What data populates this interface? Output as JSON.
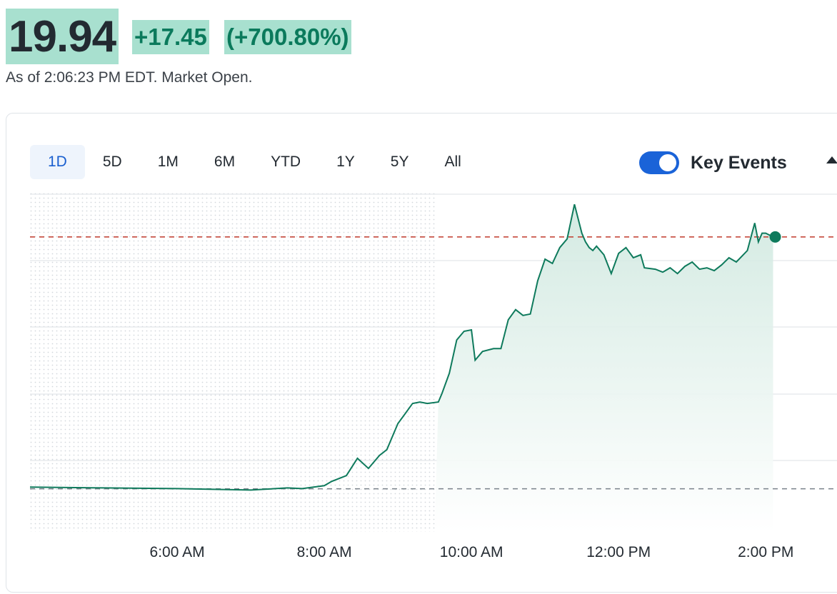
{
  "quote": {
    "price": "19.94",
    "change": "+17.45",
    "change_pct": "(+700.80%)",
    "as_of": "As of 2:06:23 PM EDT. Market Open."
  },
  "range_tabs": [
    {
      "label": "1D",
      "active": true
    },
    {
      "label": "5D"
    },
    {
      "label": "1M"
    },
    {
      "label": "6M"
    },
    {
      "label": "YTD"
    },
    {
      "label": "1Y"
    },
    {
      "label": "5Y"
    },
    {
      "label": "All"
    }
  ],
  "key_events": {
    "label": "Key Events",
    "enabled": true
  },
  "colors": {
    "line": "#0e7a5c",
    "fill": "#dcefe8",
    "price_highlight": "#a8e0cf",
    "reference_red": "#c0392b",
    "reference_gray": "#7a828b",
    "accent": "#1a63d8"
  },
  "chart_data": {
    "type": "area",
    "title": "",
    "xlabel": "",
    "ylabel": "",
    "x_tick_labels": [
      "6:00 AM",
      "8:00 AM",
      "10:00 AM",
      "12:00 PM",
      "2:00 PM"
    ],
    "x_tick_hours": [
      6,
      8,
      10,
      12,
      14
    ],
    "x_range_hours": [
      4.0,
      14.25
    ],
    "regular_session_start_hour": 9.5,
    "previous_close": 2.49,
    "reference_price": 19.94,
    "current_price": 19.94,
    "ylim": [
      -0.5,
      23.0
    ],
    "grid": true,
    "series": [
      {
        "x": [
          4.0,
          5.0,
          6.0,
          7.0,
          7.5,
          7.7,
          8.0,
          8.1,
          8.3,
          8.45,
          8.6,
          8.75,
          8.85,
          9.0,
          9.1,
          9.2,
          9.3,
          9.4,
          9.55,
          9.6,
          9.7,
          9.8,
          9.9,
          10.0,
          10.05,
          10.15,
          10.3,
          10.4,
          10.5,
          10.6,
          10.7,
          10.8,
          10.9,
          11.0,
          11.1,
          11.2,
          11.3,
          11.4,
          11.5,
          11.55,
          11.6,
          11.65,
          11.7,
          11.8,
          11.9,
          12.0,
          12.1,
          12.2,
          12.3,
          12.35,
          12.5,
          12.6,
          12.7,
          12.8,
          12.9,
          13.0,
          13.1,
          13.2,
          13.3,
          13.4,
          13.5,
          13.6,
          13.75,
          13.85,
          13.9,
          13.95,
          14.0,
          14.1
        ],
        "y": [
          2.6,
          2.55,
          2.5,
          2.4,
          2.55,
          2.5,
          2.7,
          3.0,
          3.4,
          4.6,
          3.9,
          4.8,
          5.2,
          7.0,
          7.7,
          8.4,
          8.5,
          8.4,
          8.5,
          9.1,
          10.5,
          12.8,
          13.4,
          13.5,
          11.4,
          12.0,
          12.2,
          12.2,
          14.2,
          14.9,
          14.5,
          14.6,
          16.9,
          18.4,
          18.1,
          19.2,
          19.8,
          22.2,
          20.2,
          19.6,
          19.2,
          19.0,
          19.3,
          18.7,
          17.4,
          18.8,
          19.2,
          18.5,
          18.7,
          17.8,
          17.7,
          17.5,
          17.8,
          17.4,
          17.9,
          18.2,
          17.7,
          17.8,
          17.6,
          18.0,
          18.5,
          18.2,
          19.0,
          20.9,
          19.6,
          20.2,
          20.2,
          19.94
        ]
      }
    ],
    "volume_area_note": ""
  }
}
